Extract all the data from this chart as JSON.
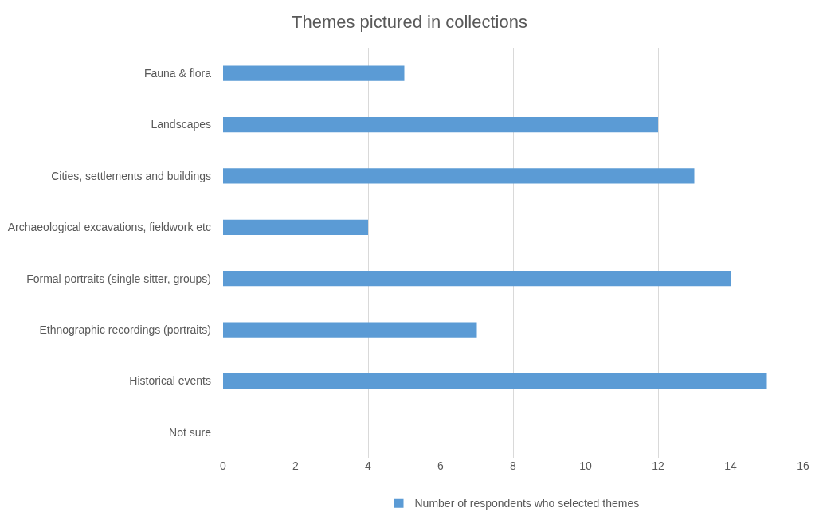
{
  "chart_data": {
    "type": "bar",
    "orientation": "horizontal",
    "title": "Themes pictured in collections",
    "categories": [
      "Fauna & flora",
      "Landscapes",
      "Cities, settlements and buildings",
      "Archaeological excavations, fieldwork etc",
      "Formal portraits (single sitter, groups)",
      "Ethnographic recordings (portraits)",
      "Historical events",
      "Not sure"
    ],
    "series": [
      {
        "name": "Number of respondents who selected themes",
        "color": "#5b9bd5",
        "values": [
          5,
          12,
          13,
          4,
          14,
          7,
          15,
          0
        ]
      }
    ],
    "xlim": [
      0,
      16
    ],
    "xticks": [
      0,
      2,
      4,
      6,
      8,
      10,
      12,
      14,
      16
    ],
    "grid": "x",
    "legend": "bottom"
  }
}
